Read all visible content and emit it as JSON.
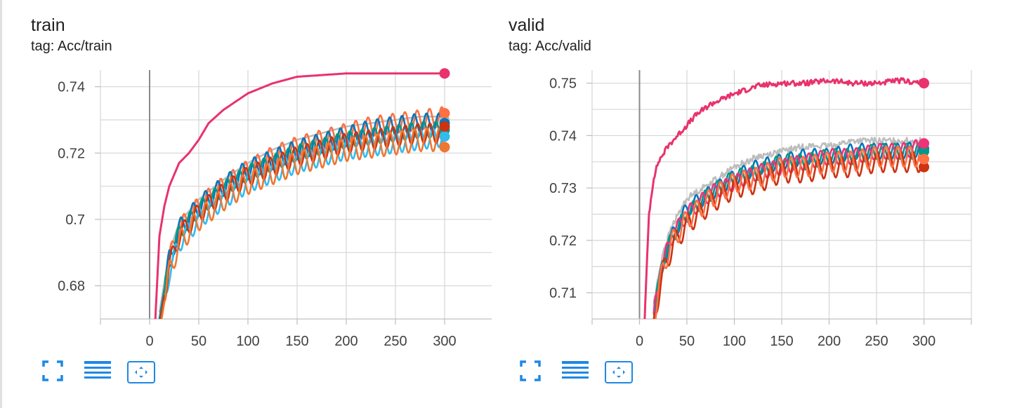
{
  "cards": [
    {
      "title": "train",
      "tag": "tag: Acc/train",
      "toolbar": {
        "fit": "fullscreen-icon",
        "data": "data-table-icon",
        "zoom": "fit-domain-icon"
      }
    },
    {
      "title": "valid",
      "tag": "tag: Acc/valid",
      "toolbar": {
        "fit": "fullscreen-icon",
        "data": "data-table-icon",
        "zoom": "fit-domain-icon"
      }
    }
  ],
  "chart_data": [
    {
      "type": "line",
      "title": "train",
      "subtitle": "tag: Acc/train",
      "xlabel": "",
      "ylabel": "",
      "xlim": [
        -50,
        350
      ],
      "ylim": [
        0.67,
        0.745
      ],
      "x_ticks": [
        0,
        50,
        100,
        150,
        200,
        250,
        300
      ],
      "x_tick_labels": [
        "0",
        "50",
        "100",
        "150",
        "200",
        "250",
        "300"
      ],
      "y_ticks": [
        0.68,
        0.7,
        0.72,
        0.74
      ],
      "y_tick_labels": [
        "0.68",
        "0.7",
        "0.72",
        "0.74"
      ],
      "grid": true,
      "series": [
        {
          "color": "#e8336d",
          "x": [
            5,
            10,
            15,
            20,
            30,
            40,
            50,
            60,
            75,
            100,
            125,
            150,
            175,
            200,
            225,
            250,
            275,
            300
          ],
          "y": [
            0.665,
            0.695,
            0.704,
            0.71,
            0.717,
            0.72,
            0.724,
            0.729,
            0.733,
            0.738,
            0.741,
            0.743,
            0.7435,
            0.744,
            0.744,
            0.744,
            0.744,
            0.744
          ],
          "end_marker": 0.744
        },
        {
          "color": "#bdbdbd",
          "x": [
            10,
            20,
            30,
            50,
            75,
            100,
            125,
            150,
            175,
            200,
            225,
            250,
            275,
            300
          ],
          "y": [
            0.672,
            0.69,
            0.699,
            0.706,
            0.712,
            0.717,
            0.721,
            0.724,
            0.726,
            0.728,
            0.729,
            0.73,
            0.731,
            0.731
          ],
          "end_marker": 0.73
        },
        {
          "color": "#ff7043",
          "x": [
            10,
            20,
            30,
            50,
            75,
            100,
            125,
            150,
            175,
            200,
            225,
            250,
            275,
            300
          ],
          "y": [
            0.67,
            0.688,
            0.697,
            0.704,
            0.71,
            0.715,
            0.719,
            0.722,
            0.724,
            0.726,
            0.728,
            0.729,
            0.73,
            0.731
          ],
          "end_marker": 0.732,
          "oscillation": 0.003
        },
        {
          "color": "#0077bb",
          "x": [
            10,
            20,
            30,
            50,
            75,
            100,
            125,
            150,
            175,
            200,
            225,
            250,
            275,
            300
          ],
          "y": [
            0.67,
            0.688,
            0.697,
            0.704,
            0.71,
            0.715,
            0.718,
            0.721,
            0.723,
            0.725,
            0.727,
            0.728,
            0.729,
            0.729
          ],
          "end_marker": 0.729,
          "oscillation": 0.003
        },
        {
          "color": "#009988",
          "x": [
            10,
            20,
            30,
            50,
            75,
            100,
            125,
            150,
            175,
            200,
            225,
            250,
            275,
            300
          ],
          "y": [
            0.669,
            0.687,
            0.696,
            0.703,
            0.709,
            0.714,
            0.717,
            0.72,
            0.722,
            0.724,
            0.725,
            0.726,
            0.727,
            0.727
          ],
          "end_marker": 0.727,
          "oscillation": 0.0025
        },
        {
          "color": "#33bbee",
          "x": [
            10,
            20,
            30,
            50,
            75,
            100,
            125,
            150,
            175,
            200,
            225,
            250,
            275,
            300
          ],
          "y": [
            0.667,
            0.684,
            0.693,
            0.7,
            0.706,
            0.711,
            0.714,
            0.717,
            0.719,
            0.721,
            0.722,
            0.723,
            0.724,
            0.725
          ],
          "end_marker": 0.725,
          "oscillation": 0.003
        },
        {
          "color": "#cc3311",
          "x": [
            10,
            20,
            30,
            50,
            75,
            100,
            125,
            150,
            175,
            200,
            225,
            250,
            275,
            300
          ],
          "y": [
            0.668,
            0.686,
            0.695,
            0.702,
            0.708,
            0.713,
            0.716,
            0.719,
            0.721,
            0.723,
            0.724,
            0.725,
            0.726,
            0.726
          ],
          "end_marker": 0.728,
          "oscillation": 0.003
        },
        {
          "color": "#ee7733",
          "x": [
            10,
            20,
            30,
            50,
            75,
            100,
            125,
            150,
            175,
            200,
            225,
            250,
            275,
            300
          ],
          "y": [
            0.666,
            0.684,
            0.693,
            0.7,
            0.706,
            0.711,
            0.714,
            0.717,
            0.719,
            0.721,
            0.722,
            0.723,
            0.724,
            0.724
          ],
          "end_marker": 0.7218,
          "oscillation": 0.0035
        }
      ]
    },
    {
      "type": "line",
      "title": "valid",
      "subtitle": "tag: Acc/valid",
      "xlabel": "",
      "ylabel": "",
      "xlim": [
        -50,
        350
      ],
      "ylim": [
        0.705,
        0.7525
      ],
      "x_ticks": [
        0,
        50,
        100,
        150,
        200,
        250,
        300
      ],
      "x_tick_labels": [
        "0",
        "50",
        "100",
        "150",
        "200",
        "250",
        "300"
      ],
      "y_ticks": [
        0.71,
        0.72,
        0.73,
        0.74,
        0.75
      ],
      "y_tick_labels": [
        "0.71",
        "0.72",
        "0.73",
        "0.74",
        "0.75"
      ],
      "grid": true,
      "series": [
        {
          "color": "#e8336d",
          "x": [
            5,
            10,
            15,
            20,
            30,
            40,
            50,
            60,
            75,
            100,
            125,
            150,
            175,
            200,
            225,
            250,
            275,
            300
          ],
          "y": [
            0.703,
            0.725,
            0.732,
            0.735,
            0.738,
            0.74,
            0.742,
            0.744,
            0.746,
            0.748,
            0.7495,
            0.75,
            0.75,
            0.7505,
            0.75,
            0.75,
            0.7505,
            0.75
          ],
          "end_marker": 0.75,
          "noise": 0.0005
        },
        {
          "color": "#bdbdbd",
          "x": [
            15,
            25,
            35,
            50,
            75,
            100,
            125,
            150,
            175,
            200,
            225,
            250,
            275,
            300
          ],
          "y": [
            0.708,
            0.718,
            0.723,
            0.728,
            0.731,
            0.734,
            0.736,
            0.737,
            0.738,
            0.738,
            0.739,
            0.739,
            0.739,
            0.739
          ],
          "end_marker": 0.7385,
          "noise": 0.0006
        },
        {
          "color": "#0077bb",
          "x": [
            15,
            25,
            35,
            50,
            75,
            100,
            125,
            150,
            175,
            200,
            225,
            250,
            275,
            300
          ],
          "y": [
            0.706,
            0.716,
            0.721,
            0.726,
            0.729,
            0.732,
            0.734,
            0.735,
            0.736,
            0.736,
            0.737,
            0.737,
            0.737,
            0.7375
          ],
          "end_marker": 0.7375,
          "oscillation": 0.0015
        },
        {
          "color": "#009988",
          "x": [
            15,
            25,
            35,
            50,
            75,
            100,
            125,
            150,
            175,
            200,
            225,
            250,
            275,
            300
          ],
          "y": [
            0.706,
            0.716,
            0.721,
            0.725,
            0.729,
            0.732,
            0.733,
            0.735,
            0.735,
            0.736,
            0.736,
            0.737,
            0.737,
            0.737
          ],
          "end_marker": 0.737,
          "oscillation": 0.0015
        },
        {
          "color": "#ee3377",
          "x": [
            15,
            25,
            35,
            50,
            75,
            100,
            125,
            150,
            175,
            200,
            225,
            250,
            275,
            300
          ],
          "y": [
            0.706,
            0.716,
            0.721,
            0.725,
            0.729,
            0.731,
            0.733,
            0.734,
            0.735,
            0.736,
            0.736,
            0.737,
            0.737,
            0.738
          ],
          "end_marker": 0.7385,
          "oscillation": 0.0015
        },
        {
          "color": "#cc3311",
          "x": [
            15,
            25,
            35,
            50,
            75,
            100,
            125,
            150,
            175,
            200,
            225,
            250,
            275,
            300
          ],
          "y": [
            0.705,
            0.714,
            0.719,
            0.723,
            0.727,
            0.73,
            0.731,
            0.733,
            0.733,
            0.734,
            0.734,
            0.735,
            0.735,
            0.735
          ],
          "end_marker": 0.734,
          "oscillation": 0.002
        },
        {
          "color": "#ff7043",
          "x": [
            15,
            25,
            35,
            50,
            75,
            100,
            125,
            150,
            175,
            200,
            225,
            250,
            275,
            300
          ],
          "y": [
            0.705,
            0.715,
            0.72,
            0.724,
            0.728,
            0.731,
            0.732,
            0.734,
            0.734,
            0.735,
            0.735,
            0.736,
            0.736,
            0.736
          ],
          "end_marker": 0.7355,
          "oscillation": 0.002
        }
      ]
    }
  ]
}
